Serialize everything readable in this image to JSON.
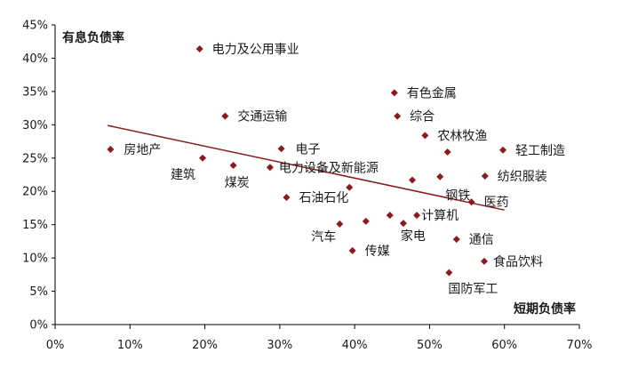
{
  "chart_data": {
    "type": "scatter",
    "title": "",
    "xlabel": "短期负债率",
    "ylabel": "有息负债率",
    "xlim": [
      0,
      0.7
    ],
    "ylim": [
      0,
      0.45
    ],
    "x_ticks": [
      0,
      0.1,
      0.2,
      0.3,
      0.4,
      0.5,
      0.6,
      0.7
    ],
    "y_ticks": [
      0,
      0.05,
      0.1,
      0.15,
      0.2,
      0.25,
      0.3,
      0.35,
      0.4,
      0.45
    ],
    "x_tick_labels": [
      "0%",
      "10%",
      "20%",
      "30%",
      "40%",
      "50%",
      "60%",
      "70%"
    ],
    "y_tick_labels": [
      "0%",
      "5%",
      "10%",
      "15%",
      "20%",
      "25%",
      "30%",
      "35%",
      "40%",
      "45%"
    ],
    "grid": false,
    "legend": "none",
    "colors": {
      "marker": "#8b1a1a",
      "trendline": "#8b1a1a",
      "axis": "#000000",
      "text": "#1a1a1a"
    },
    "points": [
      {
        "label": "电力及公用事业",
        "x": 0.193,
        "y": 0.414
      },
      {
        "label": "交通运输",
        "x": 0.227,
        "y": 0.313
      },
      {
        "label": "房地产",
        "x": 0.074,
        "y": 0.263
      },
      {
        "label": "建筑",
        "x": 0.197,
        "y": 0.25
      },
      {
        "label": "煤炭",
        "x": 0.238,
        "y": 0.239
      },
      {
        "label": "电子",
        "x": 0.302,
        "y": 0.264
      },
      {
        "label": "电力设备及新能源",
        "x": 0.287,
        "y": 0.236
      },
      {
        "label": "石油石化",
        "x": 0.309,
        "y": 0.191
      },
      {
        "label": "有色金属",
        "x": 0.453,
        "y": 0.348
      },
      {
        "label": "综合",
        "x": 0.457,
        "y": 0.313
      },
      {
        "label": "农林牧渔",
        "x": 0.494,
        "y": 0.284
      },
      {
        "label": "轻工制造",
        "x": 0.598,
        "y": 0.262
      },
      {
        "label": "纺织服装",
        "x": 0.574,
        "y": 0.223
      },
      {
        "label": "钢铁",
        "x": 0.514,
        "y": 0.222
      },
      {
        "label": "医药",
        "x": 0.556,
        "y": 0.184
      },
      {
        "label": "计算机",
        "x": 0.483,
        "y": 0.164
      },
      {
        "label": "家电",
        "x": 0.465,
        "y": 0.152
      },
      {
        "label": "汽车",
        "x": 0.38,
        "y": 0.151
      },
      {
        "label": "通信",
        "x": 0.536,
        "y": 0.128
      },
      {
        "label": "传媒",
        "x": 0.397,
        "y": 0.111
      },
      {
        "label": "食品饮料",
        "x": 0.573,
        "y": 0.095
      },
      {
        "label": "国防军工",
        "x": 0.526,
        "y": 0.078
      }
    ],
    "unlabeled_points": [
      {
        "x": 0.393,
        "y": 0.206
      },
      {
        "x": 0.415,
        "y": 0.155
      },
      {
        "x": 0.447,
        "y": 0.164
      },
      {
        "x": 0.477,
        "y": 0.217
      },
      {
        "x": 0.524,
        "y": 0.259
      }
    ],
    "trendline": {
      "x": [
        0.07,
        0.6
      ],
      "y": [
        0.299,
        0.172
      ]
    }
  }
}
